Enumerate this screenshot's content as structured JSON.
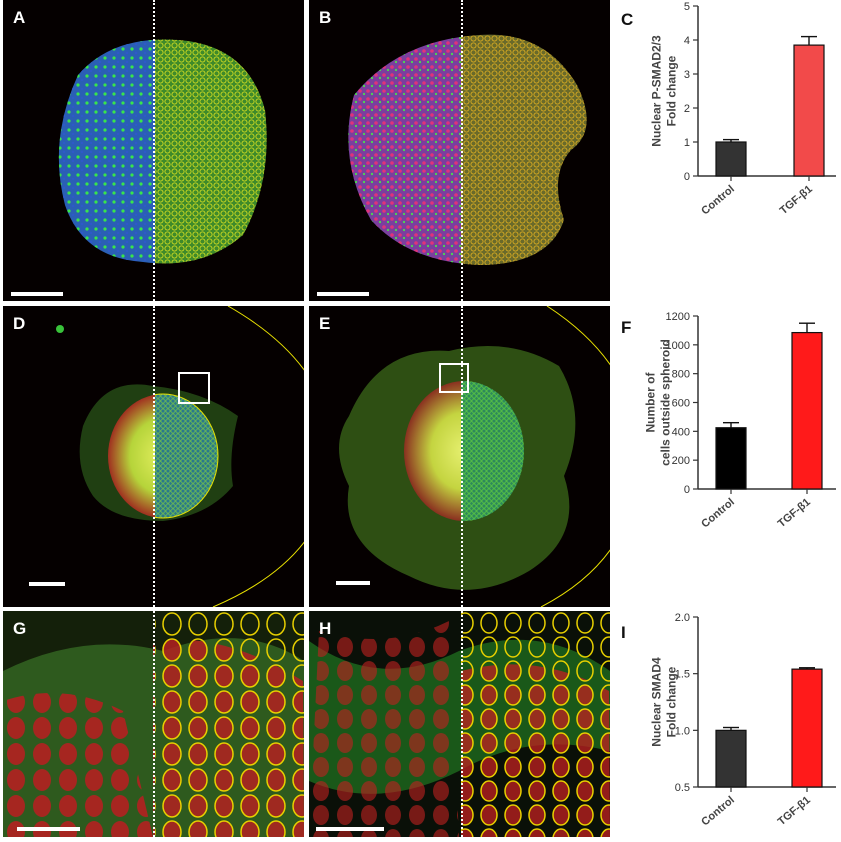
{
  "panels": {
    "a": {
      "label": "A"
    },
    "b": {
      "label": "B"
    },
    "d": {
      "label": "D"
    },
    "e": {
      "label": "E"
    },
    "g": {
      "label": "G"
    },
    "h": {
      "label": "H"
    }
  },
  "chart_labels": {
    "c": "C",
    "f": "F",
    "i": "I"
  },
  "colors": {
    "control_c": "#333333",
    "tgf_c": "#f24a4a",
    "control_f": "#000000",
    "tgf_f": "#ff1a1a",
    "control_i": "#333333",
    "tgf_i": "#ff1a1a",
    "outline": "#e8e000"
  },
  "chart_data": [
    {
      "type": "bar",
      "panel": "C",
      "categories": [
        "Control",
        "TGF-β1"
      ],
      "values": [
        1.0,
        3.85
      ],
      "errors": [
        0.07,
        0.25
      ],
      "ylabel_lines": [
        "Nuclear P-SMAD2/3",
        "Fold change"
      ],
      "ylim": [
        0,
        5
      ],
      "yticks": [
        "0",
        "1",
        "2",
        "3",
        "4",
        "5"
      ],
      "grid": false
    },
    {
      "type": "bar",
      "panel": "F",
      "categories": [
        "Control",
        "TGF-β1"
      ],
      "values": [
        425,
        1085
      ],
      "errors": [
        35,
        65
      ],
      "ylabel_lines": [
        "Number of",
        "cells outside spheroid"
      ],
      "ylim": [
        0,
        1200
      ],
      "yticks": [
        "0",
        "200",
        "400",
        "600",
        "800",
        "1000",
        "1200"
      ],
      "grid": false
    },
    {
      "type": "bar",
      "panel": "I",
      "categories": [
        "Control",
        "TGF-β1"
      ],
      "values": [
        1.0,
        1.54
      ],
      "errors": [
        0.025,
        0.012
      ],
      "ylabel_lines": [
        "Nuclear SMAD4",
        "Fold change"
      ],
      "ylim": [
        0.5,
        2.0
      ],
      "yticks": [
        "0.5",
        "1.0",
        "1.5",
        "2.0"
      ],
      "grid": false
    }
  ]
}
